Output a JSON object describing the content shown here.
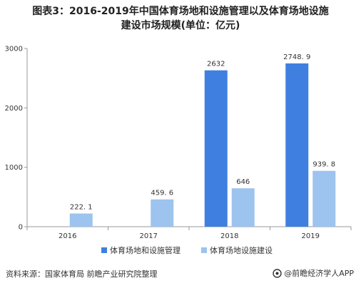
{
  "title": {
    "line1": "图表3：2016-2019年中国体育场地和设施管理以及体育场地设施",
    "line2": "建设市场规模(单位：亿元)"
  },
  "source": "资料来源：国家体育局 前瞻产业研究院整理",
  "brand": "@前瞻经济学人APP",
  "chart_data": {
    "type": "bar",
    "title": "2016-2019年中国体育场地和设施管理以及体育场地设施建设市场规模(单位：亿元)",
    "categories": [
      "2016",
      "2017",
      "2018",
      "2019"
    ],
    "series": [
      {
        "name": "体育场地和设施管理",
        "values": [
          null,
          null,
          2632,
          2748.9
        ],
        "labels": [
          "",
          "",
          "2632",
          "2748. 9"
        ],
        "color": "#3f7fdf"
      },
      {
        "name": "体育场地设施建设",
        "values": [
          222.1,
          459.6,
          646,
          939.8
        ],
        "labels": [
          "222. 1",
          "459. 6",
          "646",
          "939. 8"
        ],
        "color": "#9dc3ef"
      }
    ],
    "ylim": [
      0,
      3000
    ],
    "yticks": [
      0,
      1000,
      2000,
      3000
    ],
    "grid": false,
    "legend_position": "bottom"
  }
}
